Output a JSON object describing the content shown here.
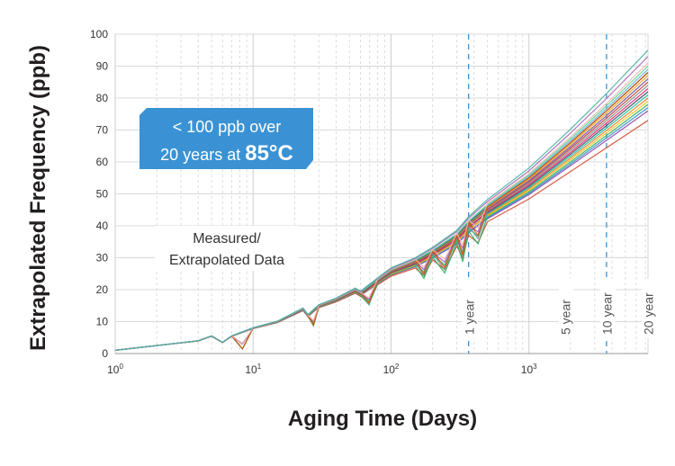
{
  "chart_data": {
    "type": "line",
    "x_scale": "log",
    "xlim": [
      1,
      7300
    ],
    "ylim": [
      0,
      100
    ],
    "y_ticks": [
      0,
      10,
      20,
      30,
      40,
      50,
      60,
      70,
      80,
      90,
      100
    ],
    "x_ticks": [
      {
        "value": 1,
        "base": "10",
        "exp": "0"
      },
      {
        "value": 10,
        "base": "10",
        "exp": "1"
      },
      {
        "value": 100,
        "base": "10",
        "exp": "2"
      },
      {
        "value": 1000,
        "base": "10",
        "exp": "3"
      }
    ],
    "xlabel": "Aging Time (Days)",
    "ylabel": "Extrapolated Frequency (ppb)",
    "grid": true,
    "markers": [
      {
        "label": "1 year",
        "x": 365,
        "line": true
      },
      {
        "label": "5 year",
        "x": 1825,
        "line": false
      },
      {
        "label": "10 year",
        "x": 3650,
        "line": true
      },
      {
        "label": "20 year",
        "x": 7300,
        "line": false
      }
    ],
    "callout": {
      "line1": "< 100 ppb over",
      "line2_prefix": "20 years at",
      "line2_emph": "85°C"
    },
    "annotation": {
      "line1": "Measured/",
      "line2": "Extrapolated Data"
    },
    "series_base": {
      "x": [
        1,
        2,
        4,
        5,
        6,
        7,
        10,
        15,
        23,
        25,
        30,
        40,
        55,
        60,
        80,
        100,
        150,
        200,
        300,
        365,
        500,
        1000,
        2000,
        3650,
        7300
      ],
      "y": [
        1,
        2.5,
        4,
        5.5,
        3.5,
        5.5,
        8,
        10,
        14,
        12,
        15,
        17,
        20,
        19,
        23,
        26,
        29,
        32,
        37,
        41,
        46,
        55,
        66,
        76,
        88
      ]
    },
    "series_end_values": [
      73,
      76,
      77,
      78,
      79,
      80,
      81,
      82,
      83,
      84,
      85,
      86,
      86,
      87,
      88,
      88,
      89,
      90,
      91,
      93,
      95
    ],
    "series_colors": [
      "#d04a2a",
      "#8e44ad",
      "#2e86c1",
      "#27ae60",
      "#f1c40f",
      "#e67e22",
      "#1abc9c",
      "#34495e",
      "#e91e63",
      "#7f8c8d",
      "#c0392b",
      "#16a085",
      "#9b59b6",
      "#f39c12",
      "#2c3e50",
      "#d35400",
      "#5dade2",
      "#58d68d",
      "#f5b7b1",
      "#a569bd",
      "#45b39d"
    ]
  }
}
